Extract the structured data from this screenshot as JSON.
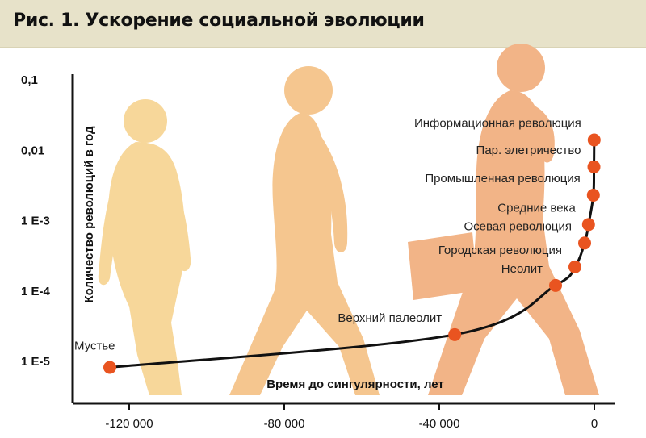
{
  "header": {
    "title": "Рис. 1. Ускорение социальной эволюции"
  },
  "colors": {
    "header_bg": "#e7e2c9",
    "point": "#e95420",
    "curve": "#111111",
    "silhouette_1": "#f7d79a",
    "silhouette_2": "#f5c68f",
    "silhouette_3": "#f2b487"
  },
  "decorations": {
    "silhouettes": [
      "early-hominid-silhouette",
      "walking-hominid-silhouette",
      "modern-human-silhouette"
    ]
  },
  "chart_data": {
    "type": "scatter",
    "title": "",
    "xlabel": "Время до сингулярности, лет",
    "ylabel": "Количество революций в год",
    "y_scale": "log",
    "xlim": [
      -140000,
      5000
    ],
    "ylim": [
      6.5e-06,
      0.1
    ],
    "x_ticks": [
      {
        "value": -120000,
        "label": "-120 000"
      },
      {
        "value": -80000,
        "label": "-80 000"
      },
      {
        "value": -40000,
        "label": "-40 000"
      },
      {
        "value": 0,
        "label": "0"
      }
    ],
    "y_ticks": [
      {
        "value": 0.1,
        "label": "0,1"
      },
      {
        "value": 0.01,
        "label": "0,01"
      },
      {
        "value": 0.001,
        "label": "1 E-3"
      },
      {
        "value": 0.0001,
        "label": "1 E-4"
      },
      {
        "value": 1e-05,
        "label": "1 E-5"
      }
    ],
    "points": [
      {
        "label": "Мустье",
        "x": -125000,
        "y": 8.2e-06
      },
      {
        "label": "Верхний палеолит",
        "x": -36000,
        "y": 2.4e-05
      },
      {
        "label": "Неолит",
        "x": -10000,
        "y": 0.00012
      },
      {
        "label": "Городская революция",
        "x": -5000,
        "y": 0.00022
      },
      {
        "label": "Осевая революция",
        "x": -2500,
        "y": 0.00048
      },
      {
        "label": "Средние века",
        "x": -1500,
        "y": 0.00088
      },
      {
        "label": "Промышленная революция",
        "x": -250,
        "y": 0.0023
      },
      {
        "label": "Пар. элетричество",
        "x": -100,
        "y": 0.0058
      },
      {
        "label": "Информационная революция",
        "x": -40,
        "y": 0.014
      }
    ]
  }
}
